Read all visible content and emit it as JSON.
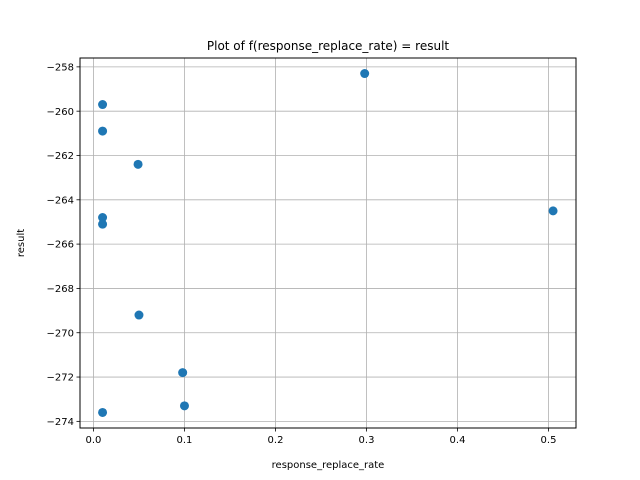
{
  "chart_data": {
    "type": "scatter",
    "title": "Plot of f(response_replace_rate) = result",
    "xlabel": "response_replace_rate",
    "ylabel": "result",
    "xlim": [
      -0.0148,
      0.5302
    ],
    "ylim": [
      -274.3,
      -257.6
    ],
    "xticks": [
      0.0,
      0.1,
      0.2,
      0.3,
      0.4,
      0.5
    ],
    "xtick_labels": [
      "0.0",
      "0.1",
      "0.2",
      "0.3",
      "0.4",
      "0.5"
    ],
    "yticks": [
      -274,
      -272,
      -270,
      -268,
      -266,
      -264,
      -262,
      -260,
      -258
    ],
    "ytick_labels": [
      "−274",
      "−272",
      "−270",
      "−268",
      "−266",
      "−264",
      "−262",
      "−260",
      "−258"
    ],
    "grid": true,
    "marker_color": "#1f77b4",
    "points": [
      {
        "x": 0.01,
        "y": -259.7
      },
      {
        "x": 0.01,
        "y": -260.9
      },
      {
        "x": 0.049,
        "y": -262.4
      },
      {
        "x": 0.01,
        "y": -264.8
      },
      {
        "x": 0.01,
        "y": -265.1
      },
      {
        "x": 0.05,
        "y": -269.2
      },
      {
        "x": 0.098,
        "y": -271.8
      },
      {
        "x": 0.1,
        "y": -273.3
      },
      {
        "x": 0.01,
        "y": -273.6
      },
      {
        "x": 0.298,
        "y": -258.3
      },
      {
        "x": 0.505,
        "y": -264.5
      }
    ]
  }
}
